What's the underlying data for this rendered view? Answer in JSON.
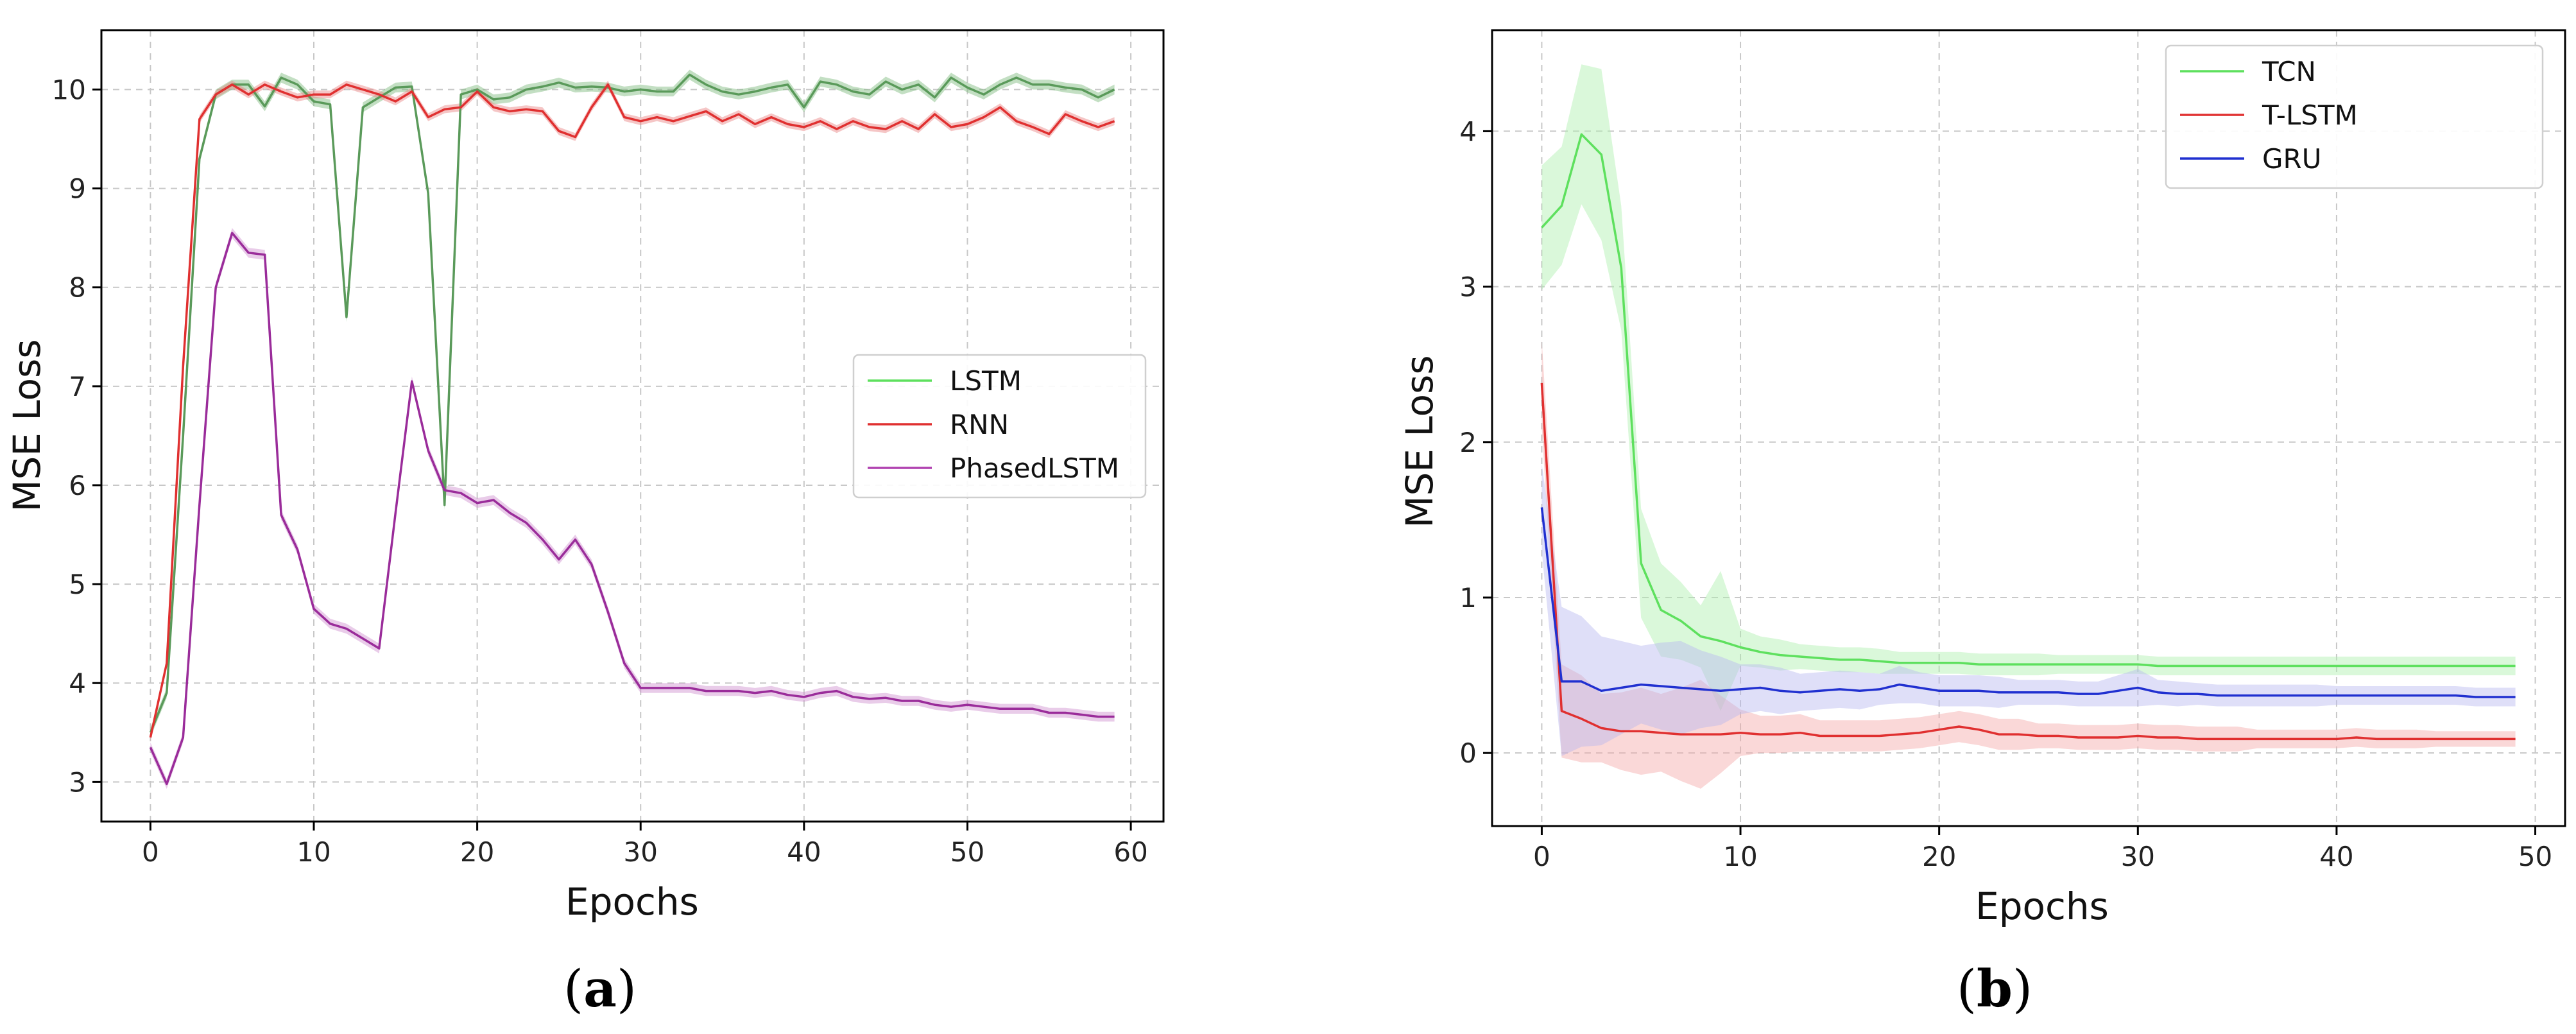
{
  "panels": [
    {
      "caption_open": "(",
      "caption_letter": "a",
      "caption_close": ")",
      "chart_data": {
        "type": "line",
        "title": "",
        "xlabel": "Epochs",
        "ylabel": "MSE  Loss",
        "xlim": [
          -3,
          62
        ],
        "ylim": [
          2.6,
          10.6
        ],
        "xticks": [
          0,
          10,
          20,
          30,
          40,
          50,
          60
        ],
        "yticks": [
          3,
          4,
          5,
          6,
          7,
          8,
          9,
          10
        ],
        "grid": true,
        "legend_position": "center-right",
        "x": [
          0,
          1,
          2,
          3,
          4,
          5,
          6,
          7,
          8,
          9,
          10,
          11,
          12,
          13,
          14,
          15,
          16,
          17,
          18,
          19,
          20,
          21,
          22,
          23,
          24,
          25,
          26,
          27,
          28,
          29,
          30,
          31,
          32,
          33,
          34,
          35,
          36,
          37,
          38,
          39,
          40,
          41,
          42,
          43,
          44,
          45,
          46,
          47,
          48,
          49,
          50,
          51,
          52,
          53,
          54,
          55,
          56,
          57,
          58,
          59
        ],
        "series": [
          {
            "name": "LSTM",
            "legend_color": "#5ee05e",
            "line_color": "#5a9a5a",
            "band_color": "#7ab87a",
            "band_width": 0.05,
            "values": [
              3.5,
              3.9,
              6.5,
              9.3,
              9.95,
              10.05,
              10.05,
              9.83,
              10.12,
              10.05,
              9.88,
              9.85,
              7.7,
              9.82,
              9.92,
              10.02,
              10.03,
              8.95,
              5.8,
              9.95,
              10.0,
              9.9,
              9.92,
              10.0,
              10.03,
              10.07,
              10.02,
              10.03,
              10.02,
              9.98,
              10.0,
              9.98,
              9.98,
              10.15,
              10.05,
              9.98,
              9.95,
              9.98,
              10.02,
              10.05,
              9.82,
              10.08,
              10.05,
              9.98,
              9.95,
              10.08,
              10.0,
              10.05,
              9.92,
              10.12,
              10.02,
              9.95,
              10.05,
              10.12,
              10.05,
              10.05,
              10.02,
              10.0,
              9.92,
              10.0
            ]
          },
          {
            "name": "RNN",
            "legend_color": "#e03030",
            "line_color": "#e03030",
            "band_color": "#e88080",
            "band_width": 0.04,
            "values": [
              3.45,
              4.2,
              7.2,
              9.7,
              9.95,
              10.05,
              9.95,
              10.05,
              9.98,
              9.92,
              9.95,
              9.95,
              10.05,
              10.0,
              9.95,
              9.88,
              9.98,
              9.72,
              9.8,
              9.82,
              9.98,
              9.82,
              9.78,
              9.8,
              9.78,
              9.58,
              9.52,
              9.82,
              10.05,
              9.72,
              9.68,
              9.72,
              9.68,
              9.73,
              9.78,
              9.68,
              9.75,
              9.65,
              9.72,
              9.65,
              9.62,
              9.68,
              9.6,
              9.68,
              9.62,
              9.6,
              9.68,
              9.6,
              9.75,
              9.62,
              9.65,
              9.72,
              9.82,
              9.68,
              9.62,
              9.55,
              9.75,
              9.68,
              9.62,
              9.68
            ]
          },
          {
            "name": "PhasedLSTM",
            "legend_color": "#b040b0",
            "line_color": "#9a2c9a",
            "band_color": "#cf8fcf",
            "band_width": 0.05,
            "values": [
              3.35,
              2.98,
              3.45,
              5.8,
              8.0,
              8.55,
              8.35,
              8.33,
              5.7,
              5.35,
              4.75,
              4.6,
              4.55,
              4.45,
              4.35,
              5.72,
              7.05,
              6.35,
              5.95,
              5.92,
              5.82,
              5.85,
              5.72,
              5.62,
              5.45,
              5.25,
              5.45,
              5.2,
              4.72,
              4.2,
              3.95,
              3.95,
              3.95,
              3.95,
              3.92,
              3.92,
              3.92,
              3.9,
              3.92,
              3.88,
              3.86,
              3.9,
              3.92,
              3.86,
              3.84,
              3.85,
              3.82,
              3.82,
              3.78,
              3.76,
              3.78,
              3.76,
              3.74,
              3.74,
              3.74,
              3.7,
              3.7,
              3.68,
              3.66,
              3.66
            ]
          }
        ]
      }
    },
    {
      "caption_open": "(",
      "caption_letter": "b",
      "caption_close": ")",
      "chart_data": {
        "type": "line",
        "title": "",
        "xlabel": "Epochs",
        "ylabel": "MSE  Loss",
        "xlim": [
          -2.5,
          51.5
        ],
        "ylim": [
          -0.47,
          4.65
        ],
        "xticks": [
          0,
          10,
          20,
          30,
          40,
          50
        ],
        "yticks": [
          0,
          1,
          2,
          3,
          4
        ],
        "grid": true,
        "legend_position": "top-right",
        "x": [
          0,
          1,
          2,
          3,
          4,
          5,
          6,
          7,
          8,
          9,
          10,
          11,
          12,
          13,
          14,
          15,
          16,
          17,
          18,
          19,
          20,
          21,
          22,
          23,
          24,
          25,
          26,
          27,
          28,
          29,
          30,
          31,
          32,
          33,
          34,
          35,
          36,
          37,
          38,
          39,
          40,
          41,
          42,
          43,
          44,
          45,
          46,
          47,
          48,
          49
        ],
        "series": [
          {
            "name": "TCN",
            "legend_color": "#5ee05e",
            "line_color": "#5ee05e",
            "band_color": "#aef0ae",
            "values": [
              3.38,
              3.52,
              3.98,
              3.85,
              3.12,
              1.22,
              0.92,
              0.85,
              0.75,
              0.72,
              0.68,
              0.65,
              0.63,
              0.62,
              0.61,
              0.6,
              0.6,
              0.59,
              0.58,
              0.58,
              0.58,
              0.58,
              0.57,
              0.57,
              0.57,
              0.57,
              0.57,
              0.57,
              0.57,
              0.57,
              0.57,
              0.56,
              0.56,
              0.56,
              0.56,
              0.56,
              0.56,
              0.56,
              0.56,
              0.56,
              0.56,
              0.56,
              0.56,
              0.56,
              0.56,
              0.56,
              0.56,
              0.56,
              0.56,
              0.56
            ],
            "band": [
              0.4,
              0.38,
              0.45,
              0.55,
              0.4,
              0.35,
              0.3,
              0.25,
              0.2,
              0.45,
              0.12,
              0.1,
              0.1,
              0.08,
              0.08,
              0.08,
              0.08,
              0.08,
              0.07,
              0.07,
              0.07,
              0.07,
              0.07,
              0.07,
              0.07,
              0.07,
              0.06,
              0.06,
              0.06,
              0.06,
              0.06,
              0.06,
              0.06,
              0.06,
              0.06,
              0.06,
              0.06,
              0.06,
              0.06,
              0.06,
              0.06,
              0.06,
              0.06,
              0.06,
              0.06,
              0.06,
              0.06,
              0.06,
              0.06,
              0.06
            ]
          },
          {
            "name": "T-LSTM",
            "legend_color": "#e03030",
            "line_color": "#e03030",
            "band_color": "#f4a8a8",
            "values": [
              2.38,
              0.27,
              0.22,
              0.16,
              0.14,
              0.14,
              0.13,
              0.12,
              0.12,
              0.12,
              0.13,
              0.12,
              0.12,
              0.13,
              0.11,
              0.11,
              0.11,
              0.11,
              0.12,
              0.13,
              0.15,
              0.17,
              0.15,
              0.12,
              0.12,
              0.11,
              0.11,
              0.1,
              0.1,
              0.1,
              0.11,
              0.1,
              0.1,
              0.09,
              0.09,
              0.09,
              0.09,
              0.09,
              0.09,
              0.09,
              0.09,
              0.1,
              0.09,
              0.09,
              0.09,
              0.09,
              0.09,
              0.09,
              0.09,
              0.09
            ],
            "band": [
              0.28,
              0.3,
              0.28,
              0.22,
              0.25,
              0.28,
              0.25,
              0.3,
              0.35,
              0.25,
              0.15,
              0.12,
              0.12,
              0.12,
              0.1,
              0.1,
              0.1,
              0.1,
              0.1,
              0.1,
              0.1,
              0.1,
              0.1,
              0.1,
              0.1,
              0.08,
              0.08,
              0.08,
              0.08,
              0.08,
              0.08,
              0.08,
              0.08,
              0.08,
              0.08,
              0.08,
              0.06,
              0.06,
              0.06,
              0.06,
              0.06,
              0.06,
              0.06,
              0.06,
              0.06,
              0.05,
              0.05,
              0.05,
              0.05,
              0.05
            ]
          },
          {
            "name": "GRU",
            "legend_color": "#2030d0",
            "line_color": "#2030d0",
            "band_color": "#b8b8f0",
            "values": [
              1.58,
              0.46,
              0.46,
              0.4,
              0.42,
              0.44,
              0.43,
              0.42,
              0.41,
              0.4,
              0.41,
              0.42,
              0.4,
              0.39,
              0.4,
              0.41,
              0.4,
              0.41,
              0.44,
              0.42,
              0.4,
              0.4,
              0.4,
              0.39,
              0.39,
              0.39,
              0.39,
              0.38,
              0.38,
              0.4,
              0.42,
              0.39,
              0.38,
              0.38,
              0.37,
              0.37,
              0.37,
              0.37,
              0.37,
              0.37,
              0.37,
              0.37,
              0.37,
              0.37,
              0.37,
              0.37,
              0.37,
              0.36,
              0.36,
              0.36
            ],
            "band": [
              0.28,
              0.48,
              0.42,
              0.35,
              0.3,
              0.25,
              0.28,
              0.3,
              0.25,
              0.22,
              0.16,
              0.15,
              0.15,
              0.12,
              0.12,
              0.12,
              0.12,
              0.1,
              0.12,
              0.1,
              0.1,
              0.1,
              0.1,
              0.1,
              0.08,
              0.08,
              0.08,
              0.08,
              0.08,
              0.1,
              0.12,
              0.08,
              0.08,
              0.07,
              0.07,
              0.07,
              0.07,
              0.07,
              0.07,
              0.07,
              0.06,
              0.06,
              0.06,
              0.06,
              0.06,
              0.06,
              0.06,
              0.06,
              0.06,
              0.06
            ]
          }
        ]
      }
    }
  ]
}
